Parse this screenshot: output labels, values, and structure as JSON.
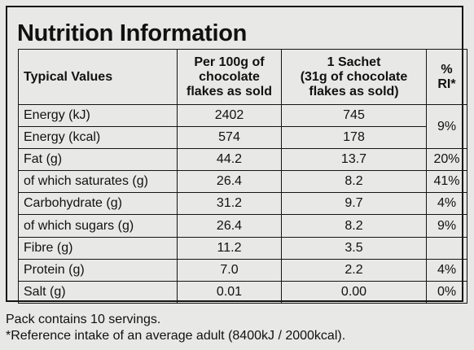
{
  "title": "Nutrition Information",
  "headers": {
    "col1": "Typical Values",
    "col2": [
      "Per 100g of",
      "chocolate",
      "flakes as sold"
    ],
    "col3": [
      "1 Sachet",
      "(31g of chocolate",
      "flakes as sold)"
    ],
    "col4": [
      "%",
      "RI*"
    ]
  },
  "rows": [
    {
      "label": "Energy (kJ)",
      "per100": "2402",
      "sachet": "745",
      "ri": "9%"
    },
    {
      "label": "Energy (kcal)",
      "per100": "574",
      "sachet": "178"
    },
    {
      "label": "Fat (g)",
      "per100": "44.2",
      "sachet": "13.7",
      "ri": "20%"
    },
    {
      "label": "of which saturates (g)",
      "per100": "26.4",
      "sachet": "8.2",
      "ri": "41%"
    },
    {
      "label": "Carbohydrate (g)",
      "per100": "31.2",
      "sachet": "9.7",
      "ri": "4%"
    },
    {
      "label": "of which sugars (g)",
      "per100": "26.4",
      "sachet": "8.2",
      "ri": "9%"
    },
    {
      "label": "Fibre (g)",
      "per100": "11.2",
      "sachet": "3.5",
      "ri": ""
    },
    {
      "label": "Protein (g)",
      "per100": "7.0",
      "sachet": "2.2",
      "ri": "4%"
    },
    {
      "label": "Salt (g)",
      "per100": "0.01",
      "sachet": "0.00",
      "ri": "0%"
    }
  ],
  "footer": {
    "line1": "Pack contains 10 servings.",
    "line2": "*Reference intake of an average adult (8400kJ / 2000kcal)."
  }
}
